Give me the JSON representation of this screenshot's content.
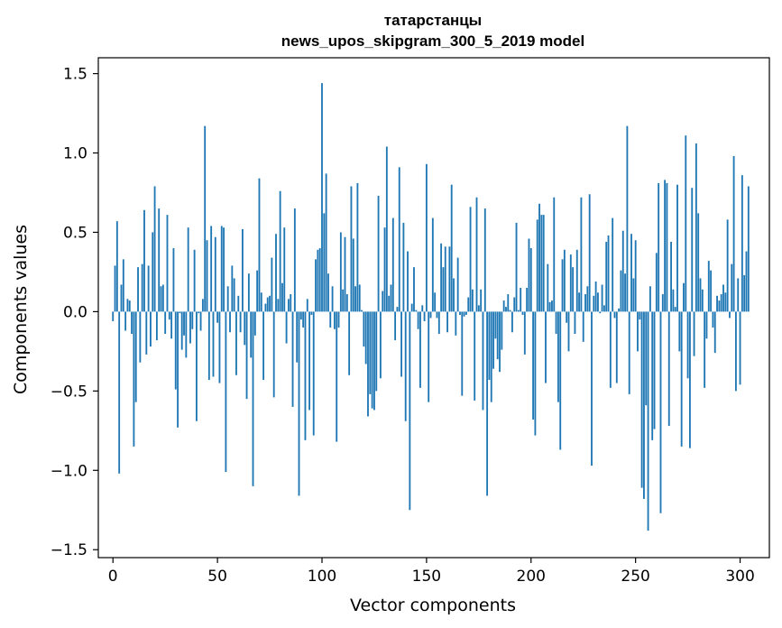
{
  "chart_data": {
    "type": "bar",
    "title_line1": "татарстанцы",
    "title_line2": "news_upos_skipgram_300_5_2019 model",
    "xlabel": "Vector components",
    "ylabel": "Components values",
    "xlim": [
      -7,
      314
    ],
    "ylim": [
      -1.55,
      1.6
    ],
    "xticks": [
      0,
      50,
      100,
      150,
      200,
      250,
      300
    ],
    "xtick_labels": [
      "0",
      "50",
      "100",
      "150",
      "200",
      "250",
      "300"
    ],
    "yticks": [
      -1.5,
      -1.0,
      -0.5,
      0.0,
      0.5,
      1.0,
      1.5
    ],
    "ytick_labels": [
      "−1.5",
      "−1.0",
      "−0.5",
      "0.0",
      "0.5",
      "1.0",
      "1.5"
    ],
    "bar_color": "#1f77b4",
    "values": [
      -0.06,
      0.29,
      0.57,
      -1.02,
      0.17,
      0.33,
      -0.12,
      0.08,
      0.07,
      -0.14,
      -0.85,
      -0.57,
      0.28,
      -0.32,
      0.3,
      0.64,
      -0.27,
      0.29,
      -0.22,
      0.5,
      0.79,
      -0.18,
      0.65,
      0.16,
      0.17,
      -0.14,
      0.61,
      -0.05,
      -0.17,
      0.4,
      -0.49,
      -0.73,
      -0.01,
      -0.24,
      -0.15,
      -0.29,
      0.53,
      -0.2,
      -0.11,
      0.39,
      -0.69,
      -0.01,
      -0.12,
      0.08,
      1.17,
      0.45,
      -0.43,
      0.54,
      -0.41,
      0.47,
      -0.07,
      -0.45,
      0.54,
      0.53,
      -1.01,
      0.16,
      -0.13,
      0.29,
      0.21,
      -0.4,
      0.1,
      -0.13,
      0.52,
      -0.21,
      -0.55,
      0.24,
      -0.29,
      -1.1,
      -0.15,
      0.26,
      0.84,
      0.12,
      -0.43,
      0.05,
      0.09,
      0.1,
      0.34,
      -0.54,
      0.49,
      0.08,
      0.76,
      0.18,
      0.53,
      -0.2,
      0.08,
      0.11,
      -0.6,
      0.65,
      -0.32,
      -1.16,
      -0.05,
      -0.1,
      -0.81,
      0.08,
      -0.62,
      -0.02,
      -0.78,
      0.33,
      0.39,
      0.4,
      1.44,
      0.62,
      0.87,
      0.24,
      -0.1,
      0.16,
      -0.11,
      -0.82,
      -0.1,
      0.5,
      0.14,
      0.47,
      0.11,
      -0.4,
      0.79,
      0.46,
      0.16,
      0.81,
      0.17,
      0.01,
      -0.22,
      -0.33,
      -0.66,
      -0.52,
      -0.61,
      -0.62,
      -0.5,
      0.73,
      -0.42,
      0.13,
      0.53,
      1.04,
      0.1,
      0.17,
      0.59,
      -0.18,
      0.03,
      0.91,
      -0.41,
      0.56,
      -0.69,
      0.38,
      -1.25,
      0.05,
      0.28,
      0.01,
      -0.11,
      -0.48,
      0.04,
      -0.06,
      0.93,
      -0.57,
      -0.04,
      0.59,
      0.12,
      -0.04,
      -0.14,
      0.43,
      0.28,
      0.41,
      -0.13,
      0.41,
      0.8,
      0.21,
      -0.15,
      0.34,
      -0.02,
      -0.53,
      -0.03,
      -0.02,
      0.09,
      0.66,
      0.14,
      -0.56,
      0.72,
      0.04,
      0.14,
      -0.62,
      0.65,
      -1.16,
      -0.43,
      -0.57,
      -0.36,
      -0.17,
      -0.3,
      -0.38,
      -0.24,
      0.07,
      0.03,
      0.11,
      0.01,
      -0.13,
      0.09,
      0.56,
      0.01,
      0.15,
      -0.02,
      -0.27,
      0.15,
      0.46,
      0.4,
      -0.68,
      -0.78,
      0.58,
      0.68,
      0.61,
      0.61,
      -0.45,
      0.3,
      0.06,
      0.07,
      0.72,
      -0.14,
      -0.57,
      -0.87,
      0.33,
      0.39,
      -0.07,
      -0.25,
      0.36,
      0.28,
      -0.14,
      0.39,
      0.12,
      0.72,
      -0.19,
      0.11,
      0.16,
      0.74,
      -0.97,
      0.1,
      0.19,
      0.12,
      -0.01,
      0.17,
      0.04,
      0.44,
      0.48,
      -0.48,
      0.59,
      -0.04,
      -0.45,
      0.02,
      0.26,
      0.51,
      0.24,
      1.17,
      -0.52,
      0.49,
      0.21,
      0.45,
      -0.25,
      -0.05,
      -1.11,
      -1.18,
      -0.59,
      -1.38,
      0.16,
      -0.81,
      -0.74,
      0.37,
      0.81,
      -1.27,
      0.11,
      0.83,
      0.81,
      -0.72,
      0.44,
      0.14,
      0.03,
      0.8,
      -0.25,
      -0.85,
      0.18,
      1.11,
      -0.42,
      -0.86,
      0.78,
      -0.28,
      1.06,
      0.62,
      0.21,
      0.14,
      -0.48,
      -0.17,
      0.32,
      0.26,
      -0.1,
      -0.26,
      0.1,
      0.07,
      0.11,
      0.17,
      0.12,
      0.58,
      -0.04,
      0.3,
      0.98,
      -0.5,
      0.21,
      -0.46,
      0.86,
      0.23,
      0.38,
      0.79
    ]
  }
}
